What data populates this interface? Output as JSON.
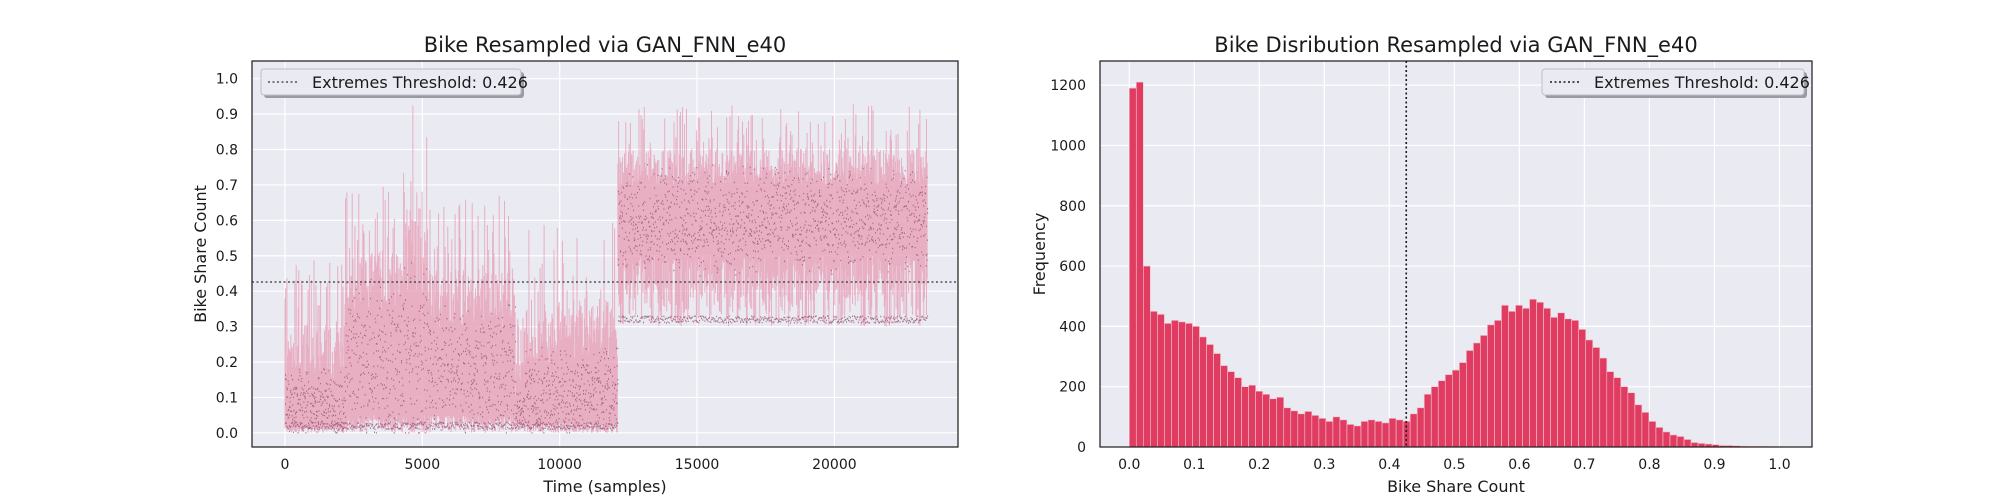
{
  "chart_data": [
    {
      "type": "line",
      "title": "Bike Resampled via GAN_FNN_e40",
      "xlabel": "Time (samples)",
      "ylabel": "Bike Share Count",
      "xlim": [
        -1200,
        24500
      ],
      "ylim": [
        -0.04,
        1.05
      ],
      "xticks": [
        "0",
        "5000",
        "10000",
        "15000",
        "20000"
      ],
      "xtick_values": [
        0,
        5000,
        10000,
        15000,
        20000
      ],
      "yticks": [
        "0.0",
        "0.1",
        "0.2",
        "0.3",
        "0.4",
        "0.5",
        "0.6",
        "0.7",
        "0.8",
        "0.9",
        "1.0"
      ],
      "ytick_values": [
        0,
        0.1,
        0.2,
        0.3,
        0.4,
        0.5,
        0.6,
        0.7,
        0.8,
        0.9,
        1.0
      ],
      "grid": true,
      "legend_position": "top-left",
      "legend": [
        "Extremes Threshold: 0.426"
      ],
      "threshold": 0.426,
      "n_samples": 23400,
      "segments": [
        {
          "x_start": 0,
          "x_end": 2200,
          "floor": 0.0,
          "typical_low": 0.02,
          "typical_high": 0.15,
          "peak_max": 0.5
        },
        {
          "x_start": 2200,
          "x_end": 4300,
          "floor": 0.0,
          "typical_low": 0.05,
          "typical_high": 0.35,
          "peak_max": 0.7
        },
        {
          "x_start": 4300,
          "x_end": 5200,
          "floor": 0.0,
          "typical_low": 0.05,
          "typical_high": 0.4,
          "peak_max": 0.93
        },
        {
          "x_start": 5200,
          "x_end": 8400,
          "floor": 0.0,
          "typical_low": 0.05,
          "typical_high": 0.3,
          "peak_max": 0.67
        },
        {
          "x_start": 8400,
          "x_end": 8700,
          "floor": 0.0,
          "typical_low": 0.03,
          "typical_high": 0.1,
          "peak_max": 0.33
        },
        {
          "x_start": 8700,
          "x_end": 12100,
          "floor": 0.0,
          "typical_low": 0.03,
          "typical_high": 0.2,
          "peak_max": 0.6
        },
        {
          "x_start": 12100,
          "x_end": 23400,
          "floor": 0.3,
          "typical_low": 0.5,
          "typical_high": 0.7,
          "peak_max": 0.93
        }
      ],
      "colors": {
        "line": "#e8a5bb",
        "points": "#8f4d6a",
        "threshold": "#333333",
        "background": "#eaeaf2",
        "grid": "#ffffff"
      }
    },
    {
      "type": "bar",
      "title": "Bike Disribution Resampled via GAN_FNN_e40",
      "xlabel": "Bike Share Count",
      "ylabel": "Frequency",
      "xlim": [
        -0.045,
        1.05
      ],
      "ylim": [
        0,
        1280
      ],
      "xticks": [
        "0.0",
        "0.1",
        "0.2",
        "0.3",
        "0.4",
        "0.5",
        "0.6",
        "0.7",
        "0.8",
        "0.9",
        "1.0"
      ],
      "xtick_values": [
        0,
        0.1,
        0.2,
        0.3,
        0.4,
        0.5,
        0.6,
        0.7,
        0.8,
        0.9,
        1.0
      ],
      "yticks": [
        "0",
        "200",
        "400",
        "600",
        "800",
        "1000",
        "1200"
      ],
      "ytick_values": [
        0,
        200,
        400,
        600,
        800,
        1000,
        1200
      ],
      "grid": true,
      "legend_position": "top-right",
      "legend": [
        "Extremes Threshold: 0.426"
      ],
      "threshold": 0.426,
      "bin_start": 0.0,
      "bin_width": 0.0108,
      "values": [
        1190,
        1210,
        600,
        450,
        440,
        410,
        420,
        415,
        410,
        400,
        365,
        340,
        310,
        270,
        250,
        230,
        200,
        205,
        185,
        175,
        160,
        165,
        130,
        120,
        110,
        118,
        105,
        95,
        85,
        100,
        90,
        75,
        70,
        85,
        90,
        85,
        80,
        95,
        90,
        85,
        110,
        130,
        175,
        200,
        220,
        240,
        255,
        280,
        320,
        345,
        370,
        405,
        420,
        470,
        450,
        470,
        460,
        490,
        480,
        460,
        430,
        445,
        425,
        420,
        390,
        355,
        330,
        295,
        250,
        230,
        200,
        180,
        140,
        115,
        85,
        65,
        50,
        40,
        35,
        25,
        15,
        12,
        10,
        8,
        5,
        5,
        4,
        3,
        2,
        2,
        2,
        1,
        1
      ],
      "colors": {
        "bar": "#e03c62",
        "bar_edge": "#f3c7d1",
        "threshold": "#1a1a1a",
        "background": "#eaeaf2",
        "grid": "#ffffff"
      }
    }
  ]
}
